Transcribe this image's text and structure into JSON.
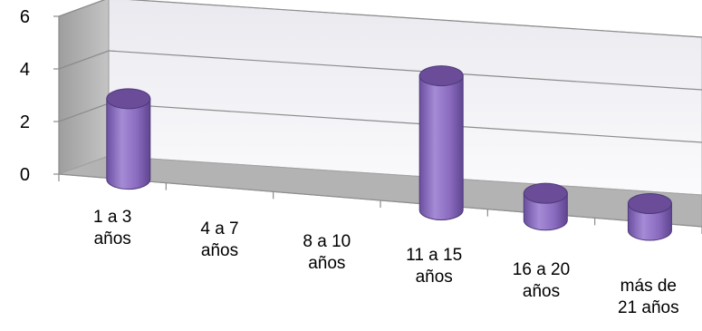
{
  "chart_data": {
    "type": "bar",
    "bar_shape": "cylinder",
    "perspective": "3d",
    "categories": [
      [
        "1 a 3",
        "años"
      ],
      [
        "4 a 7",
        "años"
      ],
      [
        "8 a 10",
        "años"
      ],
      [
        "11 a 15",
        "años"
      ],
      [
        "16 a 20",
        "años"
      ],
      [
        "más de",
        "21 años"
      ]
    ],
    "values": [
      3,
      0,
      0,
      5,
      1,
      1
    ],
    "ylim": [
      0,
      6
    ],
    "yticks": [
      "0",
      "2",
      "4",
      "6"
    ],
    "grid": true,
    "legend": "none",
    "colors": {
      "bar_side": "#8a6bbf",
      "bar_top": "#6a4c98",
      "back_wall": "#f4f4f8",
      "side_wall": "#a9a9a9",
      "floor": "#b3b3b3",
      "gridline": "#8c8c8c"
    }
  }
}
